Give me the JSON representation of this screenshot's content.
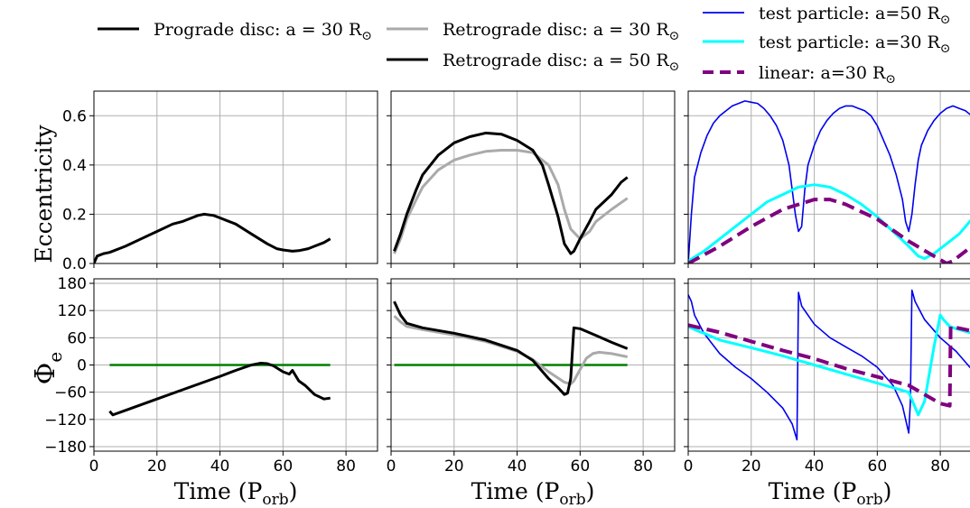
{
  "legend": [
    {
      "text": "Prograde disc: a = 30 R",
      "sym": "⊙",
      "color": "#000000",
      "dash": false
    },
    {
      "text": "Retrograde disc: a = 30 R",
      "sym": "⊙",
      "color": "#aaaaaa",
      "dash": false
    },
    {
      "text": "Retrograde disc: a = 50 R",
      "sym": "⊙",
      "color": "#000000",
      "dash": false
    },
    {
      "text": "test particle: a=50 R",
      "sym": "⊙",
      "color": "#0000ee",
      "dash": false
    },
    {
      "text": "test particle: a=30 R",
      "sym": "⊙",
      "color": "#00ffff",
      "dash": false
    },
    {
      "text": "linear: a=30 R",
      "sym": "⊙",
      "color": "#800080",
      "dash": true
    }
  ],
  "ylabel_top": "Eccentricity",
  "ylabel_bottom": {
    "main": "Φ",
    "sub": "e"
  },
  "xlabel": {
    "main": "Time (P",
    "sub": "orb",
    "close": ")"
  },
  "chart_data": [
    {
      "type": "line",
      "panel": "top-left",
      "xlim": [
        0,
        90
      ],
      "ylim": [
        0,
        0.7
      ],
      "grid": true,
      "xticks": [
        0,
        20,
        40,
        60,
        80
      ],
      "yticks": [
        0.0,
        0.2,
        0.4,
        0.6
      ],
      "series": [
        {
          "name": "Prograde disc: a = 30 R⊙",
          "color": "#000000",
          "x": [
            0,
            1,
            3,
            5,
            8,
            10,
            15,
            20,
            25,
            28,
            30,
            33,
            35,
            38,
            40,
            45,
            50,
            55,
            58,
            60,
            63,
            65,
            68,
            70,
            73,
            75
          ],
          "y": [
            0.0,
            0.03,
            0.04,
            0.045,
            0.06,
            0.07,
            0.1,
            0.13,
            0.16,
            0.17,
            0.18,
            0.195,
            0.2,
            0.195,
            0.185,
            0.16,
            0.12,
            0.08,
            0.06,
            0.055,
            0.05,
            0.052,
            0.06,
            0.07,
            0.085,
            0.1
          ]
        }
      ]
    },
    {
      "type": "line",
      "panel": "top-middle",
      "xlim": [
        0,
        90
      ],
      "ylim": [
        0,
        0.7
      ],
      "grid": true,
      "xticks": [
        0,
        20,
        40,
        60,
        80
      ],
      "yticks": [
        0.0,
        0.2,
        0.4,
        0.6
      ],
      "series": [
        {
          "name": "Retrograde disc: a = 30 R⊙",
          "color": "#aaaaaa",
          "x": [
            1,
            3,
            5,
            8,
            10,
            15,
            20,
            25,
            30,
            35,
            40,
            45,
            50,
            53,
            55,
            57,
            60,
            63,
            65,
            70,
            75
          ],
          "y": [
            0.04,
            0.1,
            0.18,
            0.26,
            0.31,
            0.38,
            0.42,
            0.44,
            0.455,
            0.46,
            0.46,
            0.45,
            0.4,
            0.32,
            0.22,
            0.14,
            0.1,
            0.13,
            0.17,
            0.22,
            0.265
          ]
        },
        {
          "name": "Retrograde disc: a = 50 R⊙",
          "color": "#000000",
          "x": [
            1,
            3,
            5,
            8,
            10,
            15,
            20,
            25,
            30,
            35,
            40,
            45,
            48,
            50,
            53,
            55,
            57,
            58,
            60,
            63,
            65,
            70,
            73,
            75
          ],
          "y": [
            0.05,
            0.12,
            0.2,
            0.3,
            0.36,
            0.44,
            0.49,
            0.515,
            0.53,
            0.525,
            0.5,
            0.46,
            0.4,
            0.32,
            0.19,
            0.08,
            0.04,
            0.05,
            0.1,
            0.17,
            0.22,
            0.28,
            0.33,
            0.35
          ]
        }
      ]
    },
    {
      "type": "line",
      "panel": "top-right",
      "xlim": [
        0,
        90
      ],
      "ylim": [
        0,
        0.7
      ],
      "grid": true,
      "xticks": [
        0,
        20,
        40,
        60,
        80
      ],
      "yticks": [
        0.0,
        0.2,
        0.4,
        0.6
      ],
      "series": [
        {
          "name": "test particle: a=50 R⊙",
          "color": "#0000ee",
          "x": [
            0,
            1,
            2,
            4,
            6,
            8,
            10,
            12,
            14,
            16,
            18,
            20,
            22,
            24,
            26,
            28,
            30,
            32,
            33,
            34,
            35,
            36,
            37,
            38,
            40,
            42,
            44,
            46,
            48,
            50,
            52,
            54,
            56,
            58,
            60,
            62,
            64,
            66,
            68,
            69,
            70,
            71,
            72,
            73,
            74,
            76,
            78,
            80,
            82,
            84,
            86,
            88,
            90
          ],
          "y": [
            0.0,
            0.2,
            0.35,
            0.45,
            0.52,
            0.57,
            0.6,
            0.62,
            0.64,
            0.65,
            0.66,
            0.655,
            0.65,
            0.63,
            0.6,
            0.56,
            0.5,
            0.4,
            0.3,
            0.2,
            0.13,
            0.15,
            0.3,
            0.4,
            0.48,
            0.54,
            0.58,
            0.61,
            0.63,
            0.64,
            0.64,
            0.63,
            0.62,
            0.6,
            0.56,
            0.5,
            0.44,
            0.36,
            0.26,
            0.17,
            0.13,
            0.2,
            0.32,
            0.42,
            0.48,
            0.54,
            0.58,
            0.61,
            0.63,
            0.64,
            0.63,
            0.62,
            0.6
          ]
        },
        {
          "name": "test particle: a=30 R⊙",
          "color": "#00ffff",
          "x": [
            0,
            5,
            10,
            15,
            20,
            25,
            30,
            35,
            40,
            45,
            50,
            55,
            60,
            65,
            70,
            73,
            75,
            78,
            80,
            82,
            84,
            86,
            88,
            90
          ],
          "y": [
            0.01,
            0.05,
            0.1,
            0.15,
            0.2,
            0.25,
            0.28,
            0.31,
            0.32,
            0.31,
            0.28,
            0.24,
            0.19,
            0.13,
            0.07,
            0.03,
            0.02,
            0.04,
            0.06,
            0.08,
            0.1,
            0.12,
            0.15,
            0.18
          ]
        },
        {
          "name": "linear: a=30 R⊙",
          "color": "#800080",
          "dash": true,
          "x": [
            0,
            10,
            20,
            30,
            40,
            45,
            50,
            60,
            70,
            78,
            82,
            84,
            86,
            88,
            90
          ],
          "y": [
            0.0,
            0.07,
            0.15,
            0.22,
            0.26,
            0.26,
            0.24,
            0.18,
            0.09,
            0.03,
            0.0,
            0.01,
            0.03,
            0.05,
            0.07
          ]
        }
      ]
    },
    {
      "type": "line",
      "panel": "bottom-left",
      "xlim": [
        0,
        90
      ],
      "ylim": [
        -190,
        190
      ],
      "grid": true,
      "xticks": [
        0,
        20,
        40,
        60,
        80
      ],
      "yticks": [
        180,
        120,
        60,
        0,
        -60,
        -120,
        -180
      ],
      "series": [
        {
          "name": "",
          "color": "#008000",
          "x": [
            5,
            75
          ],
          "y": [
            0,
            0
          ]
        },
        {
          "name": "Prograde disc: a = 30 R⊙",
          "color": "#000000",
          "x": [
            5,
            6,
            10,
            20,
            30,
            40,
            45,
            50,
            53,
            55,
            57,
            60,
            62,
            63,
            65,
            67,
            70,
            73,
            75
          ],
          "y": [
            -102,
            -110,
            -100,
            -75,
            -50,
            -25,
            -12,
            0,
            4,
            3,
            -2,
            -15,
            -20,
            -12,
            -35,
            -45,
            -65,
            -75,
            -73
          ]
        }
      ]
    },
    {
      "type": "line",
      "panel": "bottom-middle",
      "xlim": [
        0,
        90
      ],
      "ylim": [
        -190,
        190
      ],
      "grid": true,
      "xticks": [
        0,
        20,
        40,
        60,
        80
      ],
      "yticks": [
        180,
        120,
        60,
        0,
        -60,
        -120,
        -180
      ],
      "series": [
        {
          "name": "",
          "color": "#008000",
          "x": [
            1,
            75
          ],
          "y": [
            0,
            0
          ]
        },
        {
          "name": "Retrograde disc: a = 30 R⊙",
          "color": "#aaaaaa",
          "x": [
            1,
            3,
            5,
            10,
            20,
            30,
            40,
            45,
            50,
            55,
            57,
            58,
            60,
            62,
            64,
            66,
            70,
            75
          ],
          "y": [
            108,
            95,
            85,
            78,
            66,
            52,
            30,
            12,
            -15,
            -38,
            -42,
            -35,
            -10,
            15,
            25,
            28,
            25,
            18
          ]
        },
        {
          "name": "Retrograde disc: a = 50 R⊙",
          "color": "#000000",
          "x": [
            1,
            3,
            5,
            10,
            20,
            30,
            40,
            45,
            50,
            53,
            55,
            56,
            57,
            58,
            60,
            65,
            70,
            75
          ],
          "y": [
            140,
            110,
            92,
            82,
            70,
            55,
            32,
            10,
            -30,
            -50,
            -65,
            -62,
            -30,
            82,
            80,
            65,
            50,
            36
          ]
        }
      ]
    },
    {
      "type": "line",
      "panel": "bottom-right",
      "xlim": [
        0,
        90
      ],
      "ylim": [
        -190,
        190
      ],
      "grid": true,
      "xticks": [
        0,
        20,
        40,
        60,
        80
      ],
      "yticks": [
        180,
        120,
        60,
        0,
        -60,
        -120,
        -180
      ],
      "series": [
        {
          "name": "test particle: a=50 R⊙",
          "color": "#0000ee",
          "x": [
            0,
            1,
            2,
            5,
            10,
            15,
            20,
            25,
            30,
            33,
            34.5,
            35,
            36,
            40,
            45,
            50,
            55,
            60,
            65,
            68,
            70,
            70.5,
            71,
            72,
            75,
            80,
            85,
            90
          ],
          "y": [
            155,
            140,
            110,
            70,
            25,
            -5,
            -30,
            -60,
            -95,
            -130,
            -165,
            160,
            130,
            90,
            60,
            40,
            20,
            -5,
            -45,
            -90,
            -150,
            -80,
            165,
            140,
            100,
            60,
            30,
            -10
          ]
        },
        {
          "name": "test particle: a=30 R⊙",
          "color": "#00ffff",
          "x": [
            0,
            3,
            5,
            10,
            20,
            30,
            40,
            50,
            60,
            70,
            73,
            75,
            78,
            80,
            81,
            83,
            85,
            90
          ],
          "y": [
            85,
            75,
            70,
            55,
            38,
            20,
            0,
            -20,
            -40,
            -60,
            -110,
            -80,
            40,
            110,
            100,
            85,
            80,
            70
          ]
        },
        {
          "name": "linear: a=30 R⊙",
          "color": "#800080",
          "dash": true,
          "x": [
            0,
            10,
            20,
            30,
            40,
            50,
            60,
            70,
            80,
            83,
            83.3,
            84,
            90
          ],
          "y": [
            88,
            72,
            52,
            32,
            14,
            -8,
            -26,
            -45,
            -85,
            -90,
            85,
            84,
            75
          ]
        }
      ]
    }
  ]
}
